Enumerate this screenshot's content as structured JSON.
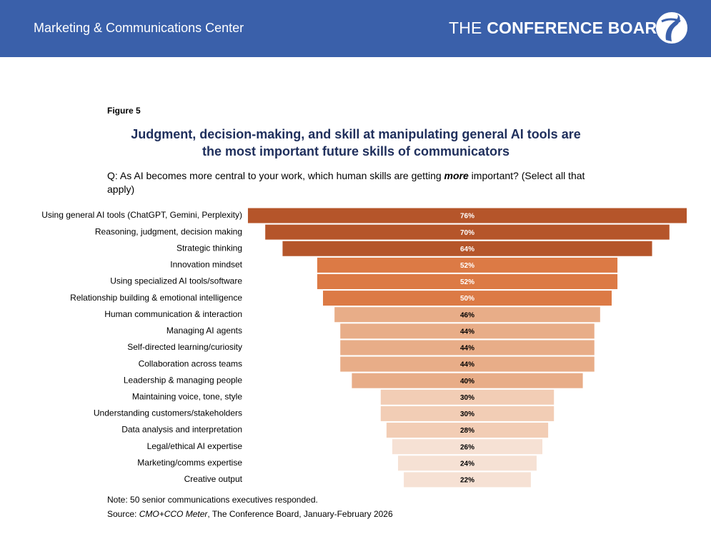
{
  "header": {
    "section": "Marketing & Communications Center",
    "logo_light": "THE",
    "logo_bold": "CONFERENCE BOARD"
  },
  "chart_data": {
    "type": "funnel",
    "figure_label": "Figure 5",
    "title_lines": [
      "Judgment, decision-making, and skill at manipulating general AI tools are",
      "the most important future skills of communicators"
    ],
    "question_parts": [
      "Q: As AI becomes more central to your work, which human skills are getting ",
      "more",
      " important? (Select all that apply)"
    ],
    "categories": [
      "Using general AI tools (ChatGPT, Gemini, Perplexity)",
      "Reasoning, judgment, decision making",
      "Strategic thinking",
      "Innovation mindset",
      "Using specialized AI tools/software",
      "Relationship building & emotional intelligence",
      "Human communication & interaction",
      "Managing AI agents",
      "Self-directed learning/curiosity",
      "Collaboration across teams",
      "Leadership & managing people",
      "Maintaining voice, tone, style",
      "Understanding customers/stakeholders",
      "Data analysis and interpretation",
      "Legal/ethical AI expertise",
      "Marketing/comms expertise",
      "Creative output"
    ],
    "values": [
      76,
      70,
      64,
      52,
      52,
      50,
      46,
      44,
      44,
      44,
      40,
      30,
      30,
      28,
      26,
      24,
      22
    ],
    "value_labels": [
      "76%",
      "70%",
      "64%",
      "52%",
      "52%",
      "50%",
      "46%",
      "44%",
      "44%",
      "44%",
      "40%",
      "30%",
      "30%",
      "28%",
      "26%",
      "24%",
      "22%"
    ],
    "colors": [
      "#b5552a",
      "#b5552a",
      "#b5552a",
      "#dc7a45",
      "#dc7a45",
      "#dc7a45",
      "#e8ad88",
      "#e8ad88",
      "#e8ad88",
      "#e8ad88",
      "#e8ad88",
      "#f2cdb5",
      "#f2cdb5",
      "#f2cdb5",
      "#f6e1d4",
      "#f6e1d4",
      "#f6e1d4"
    ],
    "note": "Note: 50 senior communications executives responded.",
    "source_parts": [
      "Source: ",
      "CMO+CCO Meter",
      ", The Conference Board, January-February 2026"
    ]
  }
}
